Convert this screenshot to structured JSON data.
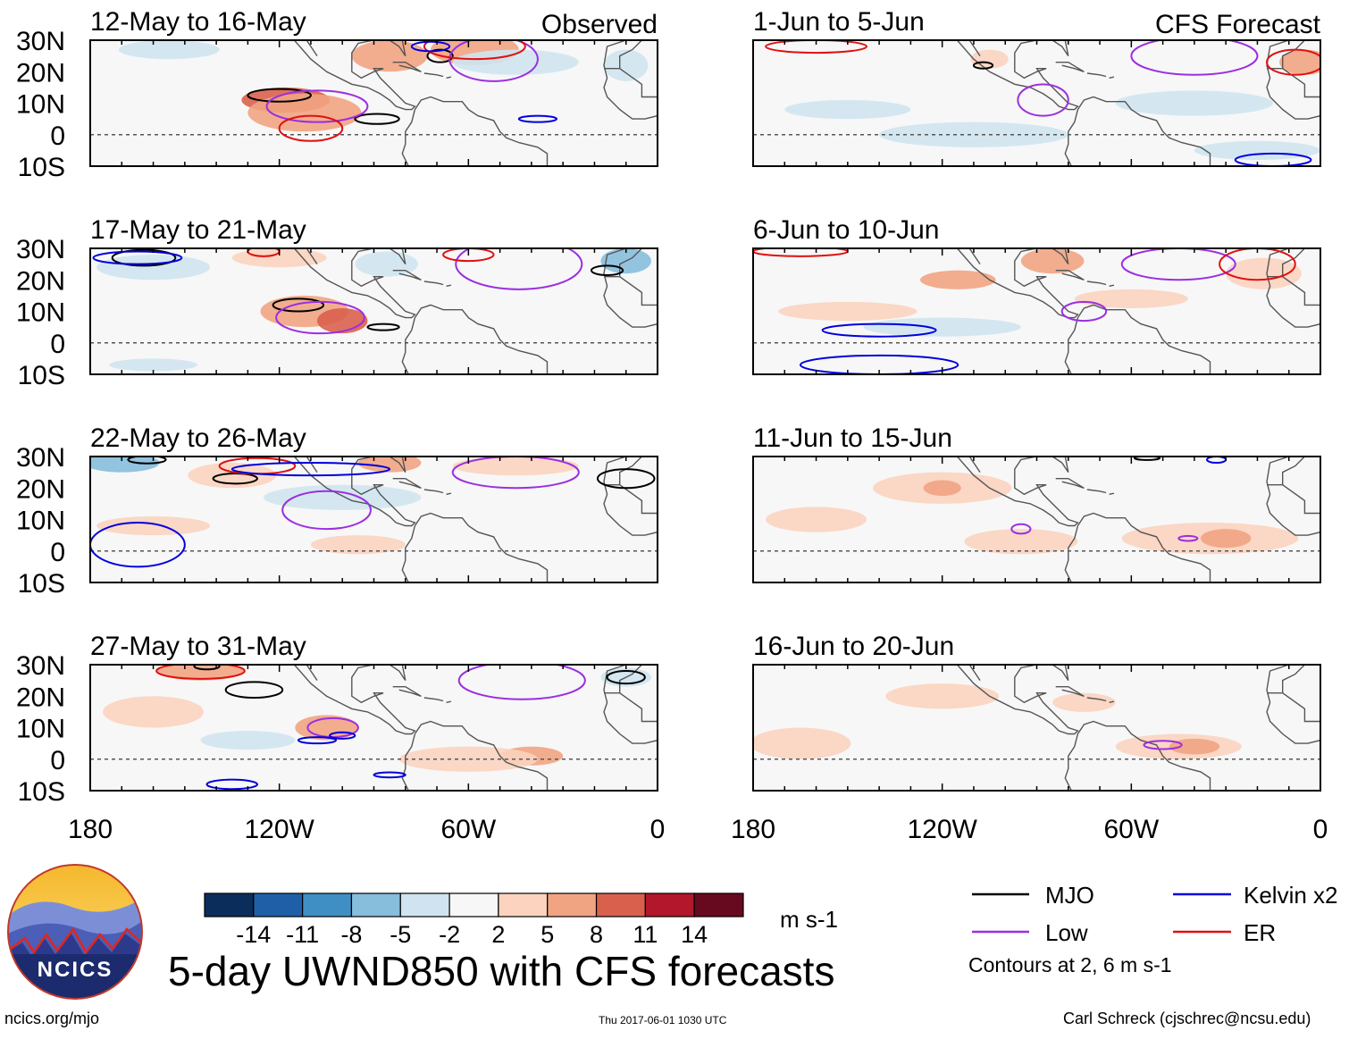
{
  "labels": {
    "observed": "Observed",
    "forecast": "CFS Forecast",
    "main_title": "5-day UWND850 with CFS forecasts",
    "units": "m s-1",
    "contours_note": "Contours at 2, 6 m s-1",
    "site": "ncics.org/mjo",
    "timestamp": "Thu 2017-06-01 1030 UTC",
    "author": "Carl Schreck (cjschrec@ncsu.edu)",
    "logo_text": "NCICS"
  },
  "lat_ticks": [
    "30N",
    "20N",
    "10N",
    "0",
    "10S"
  ],
  "lon_ticks": [
    "180",
    "120W",
    "60W",
    "0"
  ],
  "panels": [
    {
      "period": "12-May to 16-May",
      "kind": "observed",
      "show_kind_label": true,
      "anoms": [
        {
          "lon": -118,
          "lat": 11,
          "rx": 14,
          "ry": 4,
          "val": 9
        },
        {
          "lon": -112,
          "lat": 7,
          "rx": 18,
          "ry": 6,
          "val": 5
        },
        {
          "lon": -85,
          "lat": 25,
          "rx": 12,
          "ry": 5,
          "val": 5
        },
        {
          "lon": -58,
          "lat": 27,
          "rx": 14,
          "ry": 5,
          "val": 6
        },
        {
          "lon": -155,
          "lat": 27,
          "rx": 16,
          "ry": 3,
          "val": -4
        },
        {
          "lon": -45,
          "lat": 23,
          "rx": 20,
          "ry": 4,
          "val": -2.5
        },
        {
          "lon": -10,
          "lat": 22,
          "rx": 7,
          "ry": 5,
          "val": -4
        }
      ],
      "contours": [
        {
          "wave": "MJO",
          "lon": -120,
          "lat": 12.5,
          "rx": 10,
          "ry": 2
        },
        {
          "wave": "MJO",
          "lon": -89,
          "lat": 5,
          "rx": 7,
          "ry": 1.6
        },
        {
          "wave": "MJO",
          "lon": -69,
          "lat": 25,
          "rx": 4,
          "ry": 2
        },
        {
          "wave": "Low",
          "lon": -108,
          "lat": 9,
          "rx": 16,
          "ry": 5
        },
        {
          "wave": "Low",
          "lon": -52,
          "lat": 24,
          "rx": 14,
          "ry": 7
        },
        {
          "wave": "ER",
          "lon": -58,
          "lat": 28,
          "rx": 16,
          "ry": 4
        },
        {
          "wave": "ER",
          "lon": -110,
          "lat": 2,
          "rx": 10,
          "ry": 4
        },
        {
          "wave": "Kelvin",
          "lon": -38,
          "lat": 5,
          "rx": 6,
          "ry": 1
        },
        {
          "wave": "Kelvin",
          "lon": -72,
          "lat": 28,
          "rx": 6,
          "ry": 1.5
        }
      ]
    },
    {
      "period": "1-Jun to 5-Jun",
      "kind": "forecast",
      "show_kind_label": true,
      "anoms": [
        {
          "lon": -105,
          "lat": 24,
          "rx": 6,
          "ry": 3,
          "val": 4
        },
        {
          "lon": -5,
          "lat": 23,
          "rx": 8,
          "ry": 4,
          "val": 7
        },
        {
          "lon": -150,
          "lat": 8,
          "rx": 20,
          "ry": 3,
          "val": -2.5
        },
        {
          "lon": -40,
          "lat": 10,
          "rx": 25,
          "ry": 4,
          "val": -2.5
        },
        {
          "lon": -110,
          "lat": 0,
          "rx": 30,
          "ry": 4,
          "val": -2.5
        },
        {
          "lon": -20,
          "lat": -5,
          "rx": 20,
          "ry": 3,
          "val": -2.5
        }
      ],
      "contours": [
        {
          "wave": "MJO",
          "lon": -107,
          "lat": 22,
          "rx": 3,
          "ry": 1
        },
        {
          "wave": "Low",
          "lon": -88,
          "lat": 11,
          "rx": 8,
          "ry": 5
        },
        {
          "wave": "Low",
          "lon": -40,
          "lat": 25,
          "rx": 20,
          "ry": 6
        },
        {
          "wave": "ER",
          "lon": -8,
          "lat": 23,
          "rx": 9,
          "ry": 4
        },
        {
          "wave": "ER",
          "lon": -160,
          "lat": 28,
          "rx": 16,
          "ry": 2
        },
        {
          "wave": "Kelvin",
          "lon": -15,
          "lat": -8,
          "rx": 12,
          "ry": 2
        }
      ]
    },
    {
      "period": "17-May to 21-May",
      "kind": "observed",
      "show_kind_label": false,
      "anoms": [
        {
          "lon": -112,
          "lat": 10,
          "rx": 14,
          "ry": 5,
          "val": 6
        },
        {
          "lon": -100,
          "lat": 7,
          "rx": 8,
          "ry": 4,
          "val": 9
        },
        {
          "lon": -86,
          "lat": 25,
          "rx": 10,
          "ry": 4,
          "val": -4
        },
        {
          "lon": -10,
          "lat": 26,
          "rx": 8,
          "ry": 4,
          "val": -6
        },
        {
          "lon": -160,
          "lat": 24,
          "rx": 18,
          "ry": 4,
          "val": -2.5
        },
        {
          "lon": -120,
          "lat": 27,
          "rx": 15,
          "ry": 3,
          "val": 3
        },
        {
          "lon": -160,
          "lat": -7,
          "rx": 14,
          "ry": 2,
          "val": -2.5
        }
      ],
      "contours": [
        {
          "wave": "MJO",
          "lon": -114,
          "lat": 12,
          "rx": 8,
          "ry": 2
        },
        {
          "wave": "MJO",
          "lon": -87,
          "lat": 5,
          "rx": 5,
          "ry": 1
        },
        {
          "wave": "MJO",
          "lon": -163,
          "lat": 27,
          "rx": 10,
          "ry": 2.5
        },
        {
          "wave": "MJO",
          "lon": -16,
          "lat": 23,
          "rx": 5,
          "ry": 1.5
        },
        {
          "wave": "Low",
          "lon": -107,
          "lat": 8,
          "rx": 14,
          "ry": 5
        },
        {
          "wave": "Low",
          "lon": -44,
          "lat": 25,
          "rx": 20,
          "ry": 8
        },
        {
          "wave": "ER",
          "lon": -60,
          "lat": 28,
          "rx": 8,
          "ry": 2
        },
        {
          "wave": "ER",
          "lon": -125,
          "lat": 29,
          "rx": 5,
          "ry": 1.5
        },
        {
          "wave": "Kelvin",
          "lon": -165,
          "lat": 27,
          "rx": 14,
          "ry": 2
        }
      ]
    },
    {
      "period": "6-Jun to 10-Jun",
      "kind": "forecast",
      "show_kind_label": false,
      "anoms": [
        {
          "lon": -85,
          "lat": 26,
          "rx": 10,
          "ry": 4,
          "val": 6
        },
        {
          "lon": -115,
          "lat": 20,
          "rx": 12,
          "ry": 3,
          "val": 5
        },
        {
          "lon": -150,
          "lat": 10,
          "rx": 22,
          "ry": 3,
          "val": 3
        },
        {
          "lon": -60,
          "lat": 14,
          "rx": 18,
          "ry": 3,
          "val": 3
        },
        {
          "lon": -18,
          "lat": 22,
          "rx": 12,
          "ry": 5,
          "val": 3
        },
        {
          "lon": -120,
          "lat": 5,
          "rx": 25,
          "ry": 3,
          "val": -2.5
        }
      ],
      "contours": [
        {
          "wave": "Low",
          "lon": -75,
          "lat": 10,
          "rx": 7,
          "ry": 3
        },
        {
          "wave": "Low",
          "lon": -45,
          "lat": 25,
          "rx": 18,
          "ry": 5
        },
        {
          "wave": "Kelvin",
          "lon": -140,
          "lat": 4,
          "rx": 18,
          "ry": 2
        },
        {
          "wave": "Kelvin",
          "lon": -140,
          "lat": -7,
          "rx": 25,
          "ry": 3
        },
        {
          "wave": "ER",
          "lon": -20,
          "lat": 25,
          "rx": 12,
          "ry": 5
        },
        {
          "wave": "ER",
          "lon": -165,
          "lat": 29,
          "rx": 15,
          "ry": 1.5
        }
      ]
    },
    {
      "period": "22-May to 26-May",
      "kind": "observed",
      "show_kind_label": false,
      "anoms": [
        {
          "lon": -170,
          "lat": 28,
          "rx": 12,
          "ry": 3,
          "val": -6
        },
        {
          "lon": -135,
          "lat": 24,
          "rx": 14,
          "ry": 4,
          "val": 4
        },
        {
          "lon": -85,
          "lat": 28,
          "rx": 10,
          "ry": 3,
          "val": 5
        },
        {
          "lon": -100,
          "lat": 17,
          "rx": 25,
          "ry": 4,
          "val": -2.5
        },
        {
          "lon": -160,
          "lat": 8,
          "rx": 18,
          "ry": 3,
          "val": 3
        },
        {
          "lon": -45,
          "lat": 27,
          "rx": 20,
          "ry": 3,
          "val": 3
        },
        {
          "lon": -95,
          "lat": 2,
          "rx": 15,
          "ry": 3,
          "val": 3
        }
      ],
      "contours": [
        {
          "wave": "MJO",
          "lon": -134,
          "lat": 23,
          "rx": 7,
          "ry": 1.6
        },
        {
          "wave": "MJO",
          "lon": -10,
          "lat": 23,
          "rx": 9,
          "ry": 3
        },
        {
          "wave": "MJO",
          "lon": -162,
          "lat": 29,
          "rx": 6,
          "ry": 1.2
        },
        {
          "wave": "Low",
          "lon": -105,
          "lat": 13,
          "rx": 14,
          "ry": 6
        },
        {
          "wave": "Low",
          "lon": -45,
          "lat": 25,
          "rx": 20,
          "ry": 5
        },
        {
          "wave": "ER",
          "lon": -127,
          "lat": 27,
          "rx": 12,
          "ry": 2.5
        },
        {
          "wave": "Kelvin",
          "lon": -165,
          "lat": 2,
          "rx": 15,
          "ry": 7
        },
        {
          "wave": "Kelvin",
          "lon": -110,
          "lat": 26,
          "rx": 25,
          "ry": 2
        }
      ]
    },
    {
      "period": "11-Jun to 15-Jun",
      "kind": "forecast",
      "show_kind_label": false,
      "anoms": [
        {
          "lon": -120,
          "lat": 20,
          "rx": 22,
          "ry": 5,
          "val": 3
        },
        {
          "lon": -120,
          "lat": 20,
          "rx": 6,
          "ry": 2.5,
          "val": 6
        },
        {
          "lon": -35,
          "lat": 4,
          "rx": 28,
          "ry": 5,
          "val": 3
        },
        {
          "lon": -30,
          "lat": 4,
          "rx": 8,
          "ry": 3,
          "val": 6
        },
        {
          "lon": -160,
          "lat": 10,
          "rx": 16,
          "ry": 4,
          "val": 3
        },
        {
          "lon": -95,
          "lat": 3,
          "rx": 18,
          "ry": 4,
          "val": 3
        }
      ],
      "contours": [
        {
          "wave": "Low",
          "lon": -95,
          "lat": 7,
          "rx": 3,
          "ry": 1.5
        },
        {
          "wave": "Low",
          "lon": -42,
          "lat": 4,
          "rx": 3,
          "ry": 0.8
        },
        {
          "wave": "Kelvin",
          "lon": -33,
          "lat": 29,
          "rx": 3,
          "ry": 1
        },
        {
          "wave": "MJO",
          "lon": -55,
          "lat": 29.5,
          "rx": 4,
          "ry": 0.6
        }
      ]
    },
    {
      "period": "27-May to 31-May",
      "kind": "observed",
      "show_kind_label": false,
      "anoms": [
        {
          "lon": -145,
          "lat": 28,
          "rx": 14,
          "ry": 3,
          "val": 5
        },
        {
          "lon": -105,
          "lat": 10,
          "rx": 10,
          "ry": 4,
          "val": 5
        },
        {
          "lon": -40,
          "lat": 1,
          "rx": 10,
          "ry": 3,
          "val": 6
        },
        {
          "lon": -60,
          "lat": 0,
          "rx": 22,
          "ry": 4,
          "val": 3
        },
        {
          "lon": -10,
          "lat": 26,
          "rx": 8,
          "ry": 3,
          "val": -4
        },
        {
          "lon": -160,
          "lat": 15,
          "rx": 16,
          "ry": 5,
          "val": 3
        },
        {
          "lon": -130,
          "lat": 6,
          "rx": 15,
          "ry": 3,
          "val": -2.5
        }
      ],
      "contours": [
        {
          "wave": "MJO",
          "lon": -128,
          "lat": 22,
          "rx": 9,
          "ry": 2.5
        },
        {
          "wave": "MJO",
          "lon": -143,
          "lat": 29.5,
          "rx": 4,
          "ry": 1
        },
        {
          "wave": "MJO",
          "lon": -10,
          "lat": 26,
          "rx": 6,
          "ry": 2
        },
        {
          "wave": "Low",
          "lon": -103,
          "lat": 10,
          "rx": 8,
          "ry": 3
        },
        {
          "wave": "Low",
          "lon": -43,
          "lat": 25,
          "rx": 20,
          "ry": 6
        },
        {
          "wave": "ER",
          "lon": -145,
          "lat": 28,
          "rx": 14,
          "ry": 2.5
        },
        {
          "wave": "Kelvin",
          "lon": -108,
          "lat": 6,
          "rx": 6,
          "ry": 1
        },
        {
          "wave": "Kelvin",
          "lon": -100,
          "lat": 7.5,
          "rx": 4,
          "ry": 1
        },
        {
          "wave": "Kelvin",
          "lon": -135,
          "lat": -8,
          "rx": 8,
          "ry": 1.5
        },
        {
          "wave": "Kelvin",
          "lon": -85,
          "lat": -5,
          "rx": 5,
          "ry": 0.8
        }
      ]
    },
    {
      "period": "16-Jun to 20-Jun",
      "kind": "forecast",
      "show_kind_label": false,
      "anoms": [
        {
          "lon": -120,
          "lat": 20,
          "rx": 18,
          "ry": 4,
          "val": 3
        },
        {
          "lon": -45,
          "lat": 4,
          "rx": 20,
          "ry": 4,
          "val": 3
        },
        {
          "lon": -40,
          "lat": 4,
          "rx": 8,
          "ry": 2.5,
          "val": 6
        },
        {
          "lon": -165,
          "lat": 5,
          "rx": 16,
          "ry": 5,
          "val": 3
        },
        {
          "lon": -75,
          "lat": 18,
          "rx": 10,
          "ry": 3,
          "val": 3
        }
      ],
      "contours": [
        {
          "wave": "Low",
          "lon": -50,
          "lat": 4.5,
          "rx": 6,
          "ry": 1.3
        }
      ]
    }
  ],
  "colorbar": {
    "ticks": [
      "-14",
      "-11",
      "-8",
      "-5",
      "-2",
      "2",
      "5",
      "8",
      "11",
      "14"
    ],
    "colors": [
      "#0b2d5b",
      "#1f5fa8",
      "#3f8fc5",
      "#86bedc",
      "#cfe4f0",
      "#f7f7f7",
      "#fbd3bf",
      "#f1a482",
      "#d9604d",
      "#b3172b",
      "#670a1f"
    ]
  },
  "legend": [
    {
      "name": "MJO",
      "color": "#000000"
    },
    {
      "name": "Kelvin x2",
      "color": "#0000dd"
    },
    {
      "name": "Low",
      "color": "#9b2fe0"
    },
    {
      "name": "ER",
      "color": "#e01010"
    }
  ]
}
